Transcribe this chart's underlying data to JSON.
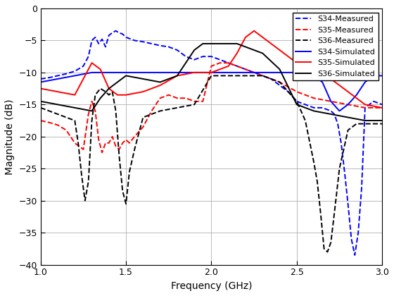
{
  "xlabel": "Frequency (GHz)",
  "ylabel": "Magnitude (dB)",
  "xlim": [
    1,
    3
  ],
  "ylim": [
    -40,
    0
  ],
  "xticks": [
    1.0,
    1.5,
    2.0,
    2.5,
    3.0
  ],
  "yticks": [
    0,
    -5,
    -10,
    -15,
    -20,
    -25,
    -30,
    -35,
    -40
  ],
  "lines": [
    {
      "label": "S34-Measured",
      "color": "#0000FF",
      "linestyle": "--",
      "linewidth": 1.4,
      "x": [
        1.0,
        1.05,
        1.1,
        1.15,
        1.2,
        1.25,
        1.28,
        1.3,
        1.32,
        1.34,
        1.36,
        1.38,
        1.4,
        1.42,
        1.44,
        1.46,
        1.48,
        1.5,
        1.55,
        1.6,
        1.65,
        1.7,
        1.75,
        1.8,
        1.85,
        1.9,
        1.95,
        2.0,
        2.05,
        2.1,
        2.15,
        2.2,
        2.25,
        2.3,
        2.35,
        2.4,
        2.45,
        2.5,
        2.55,
        2.6,
        2.65,
        2.7,
        2.72,
        2.74,
        2.76,
        2.78,
        2.8,
        2.82,
        2.84,
        2.86,
        2.88,
        2.9,
        2.95,
        3.0
      ],
      "y": [
        -11.0,
        -10.8,
        -10.5,
        -10.2,
        -9.8,
        -9.0,
        -7.5,
        -5.0,
        -4.5,
        -5.5,
        -4.8,
        -6.0,
        -4.2,
        -3.8,
        -3.5,
        -3.8,
        -4.0,
        -4.5,
        -5.0,
        -5.2,
        -5.5,
        -5.8,
        -6.0,
        -6.5,
        -7.5,
        -8.0,
        -7.5,
        -7.5,
        -8.0,
        -8.5,
        -9.0,
        -9.5,
        -10.0,
        -10.5,
        -11.0,
        -12.0,
        -13.0,
        -14.5,
        -15.0,
        -15.5,
        -15.5,
        -16.0,
        -16.5,
        -18.0,
        -21.0,
        -25.5,
        -30.5,
        -36.0,
        -38.5,
        -35.0,
        -28.0,
        -15.5,
        -14.5,
        -15.0
      ]
    },
    {
      "label": "S35-Measured",
      "color": "#FF0000",
      "linestyle": "--",
      "linewidth": 1.4,
      "x": [
        1.0,
        1.05,
        1.1,
        1.15,
        1.2,
        1.25,
        1.28,
        1.3,
        1.32,
        1.34,
        1.36,
        1.38,
        1.4,
        1.42,
        1.44,
        1.46,
        1.48,
        1.5,
        1.52,
        1.55,
        1.6,
        1.65,
        1.7,
        1.75,
        1.8,
        1.85,
        1.9,
        1.95,
        2.0,
        2.05,
        2.1,
        2.15,
        2.2,
        2.25,
        2.3,
        2.35,
        2.4,
        2.5,
        2.6,
        2.7,
        2.8,
        2.9,
        3.0
      ],
      "y": [
        -17.5,
        -17.8,
        -18.2,
        -19.0,
        -21.0,
        -22.0,
        -16.5,
        -14.5,
        -16.0,
        -20.5,
        -22.5,
        -21.0,
        -21.0,
        -20.0,
        -21.5,
        -22.0,
        -21.0,
        -20.5,
        -21.0,
        -20.0,
        -18.5,
        -16.0,
        -14.0,
        -13.5,
        -14.0,
        -14.0,
        -14.5,
        -14.5,
        -9.0,
        -8.5,
        -8.5,
        -9.0,
        -9.5,
        -10.0,
        -10.5,
        -11.0,
        -11.5,
        -13.0,
        -14.0,
        -14.5,
        -15.0,
        -15.5,
        -15.5
      ]
    },
    {
      "label": "S36-Measured",
      "color": "#000000",
      "linestyle": "--",
      "linewidth": 1.4,
      "x": [
        1.0,
        1.05,
        1.1,
        1.15,
        1.2,
        1.22,
        1.24,
        1.26,
        1.28,
        1.3,
        1.32,
        1.35,
        1.38,
        1.4,
        1.42,
        1.44,
        1.46,
        1.48,
        1.5,
        1.52,
        1.55,
        1.6,
        1.7,
        1.8,
        1.9,
        2.0,
        2.05,
        2.1,
        2.15,
        2.2,
        2.25,
        2.3,
        2.35,
        2.4,
        2.5,
        2.55,
        2.6,
        2.62,
        2.64,
        2.66,
        2.68,
        2.7,
        2.72,
        2.75,
        2.8,
        2.85,
        2.9,
        2.95,
        3.0
      ],
      "y": [
        -15.5,
        -16.0,
        -16.5,
        -17.0,
        -17.5,
        -21.0,
        -26.0,
        -30.0,
        -27.0,
        -17.5,
        -13.5,
        -12.5,
        -13.0,
        -13.5,
        -13.0,
        -16.0,
        -23.0,
        -28.5,
        -30.5,
        -25.5,
        -22.0,
        -17.0,
        -16.0,
        -15.5,
        -15.0,
        -10.5,
        -10.5,
        -10.5,
        -10.5,
        -10.5,
        -10.5,
        -10.5,
        -11.0,
        -11.5,
        -14.5,
        -17.5,
        -24.0,
        -27.0,
        -32.0,
        -37.5,
        -38.0,
        -36.5,
        -32.0,
        -25.0,
        -19.0,
        -18.0,
        -18.0,
        -18.0,
        -18.0
      ]
    },
    {
      "label": "S34-Simulated",
      "color": "#0000FF",
      "linestyle": "-",
      "linewidth": 1.4,
      "x": [
        1.0,
        1.1,
        1.2,
        1.3,
        1.35,
        1.4,
        1.5,
        1.6,
        1.7,
        1.8,
        1.9,
        2.0,
        2.1,
        2.2,
        2.3,
        2.4,
        2.5,
        2.55,
        2.6,
        2.65,
        2.7,
        2.75,
        2.8,
        2.85,
        2.9,
        2.95,
        3.0
      ],
      "y": [
        -11.5,
        -11.0,
        -10.5,
        -10.0,
        -10.0,
        -10.0,
        -10.0,
        -10.0,
        -10.0,
        -10.0,
        -10.0,
        -10.0,
        -10.0,
        -10.0,
        -10.0,
        -10.0,
        -10.0,
        -10.0,
        -10.5,
        -11.5,
        -14.5,
        -16.0,
        -15.0,
        -13.5,
        -11.5,
        -10.5,
        -10.5
      ]
    },
    {
      "label": "S35-Simulated",
      "color": "#FF0000",
      "linestyle": "-",
      "linewidth": 1.4,
      "x": [
        1.0,
        1.1,
        1.2,
        1.25,
        1.3,
        1.35,
        1.4,
        1.45,
        1.5,
        1.6,
        1.7,
        1.8,
        1.9,
        2.0,
        2.1,
        2.15,
        2.2,
        2.25,
        2.3,
        2.35,
        2.4,
        2.5,
        2.6,
        2.7,
        2.8,
        2.9,
        3.0
      ],
      "y": [
        -12.5,
        -13.0,
        -13.5,
        -11.0,
        -8.5,
        -9.5,
        -12.5,
        -13.5,
        -13.5,
        -13.0,
        -12.0,
        -10.5,
        -10.0,
        -10.0,
        -9.0,
        -7.0,
        -4.5,
        -3.5,
        -4.5,
        -5.5,
        -6.5,
        -8.5,
        -10.0,
        -11.0,
        -13.0,
        -15.0,
        -15.5
      ]
    },
    {
      "label": "S36-Simulated",
      "color": "#000000",
      "linestyle": "-",
      "linewidth": 1.4,
      "x": [
        1.0,
        1.1,
        1.2,
        1.3,
        1.35,
        1.4,
        1.5,
        1.6,
        1.7,
        1.8,
        1.85,
        1.9,
        1.95,
        2.0,
        2.05,
        2.1,
        2.15,
        2.2,
        2.3,
        2.4,
        2.5,
        2.6,
        2.7,
        2.8,
        2.9,
        3.0
      ],
      "y": [
        -14.5,
        -15.0,
        -15.5,
        -16.0,
        -14.0,
        -12.5,
        -10.5,
        -11.0,
        -11.5,
        -10.5,
        -8.5,
        -6.5,
        -5.5,
        -5.5,
        -5.5,
        -5.5,
        -5.5,
        -6.0,
        -7.0,
        -9.5,
        -15.0,
        -16.0,
        -16.5,
        -17.0,
        -17.5,
        -17.5
      ]
    }
  ]
}
